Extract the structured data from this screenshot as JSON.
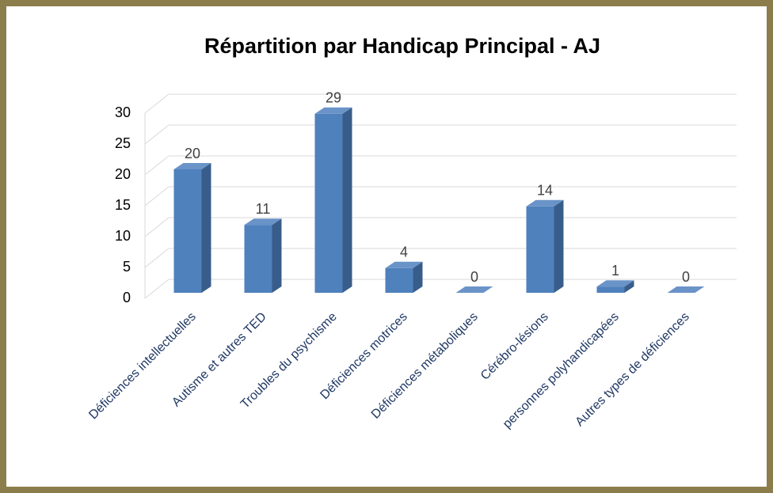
{
  "chart_data": {
    "type": "bar",
    "title": "Répartition par Handicap Principal - AJ",
    "categories": [
      "Déficiences intellectuelles",
      "Autisme et autres TED",
      "Troubles du psychisme",
      "Déficiences motrices",
      "Déficiences métaboliques",
      "Cérébro-lésions",
      "personnes polyhandicapées",
      "Autres types de déficiences"
    ],
    "values": [
      20,
      11,
      29,
      4,
      0,
      14,
      1,
      0
    ],
    "color": "#4f81bd",
    "ylim": [
      0,
      30
    ],
    "yticks": [
      0,
      5,
      10,
      15,
      20,
      25,
      30
    ],
    "grid": true
  }
}
